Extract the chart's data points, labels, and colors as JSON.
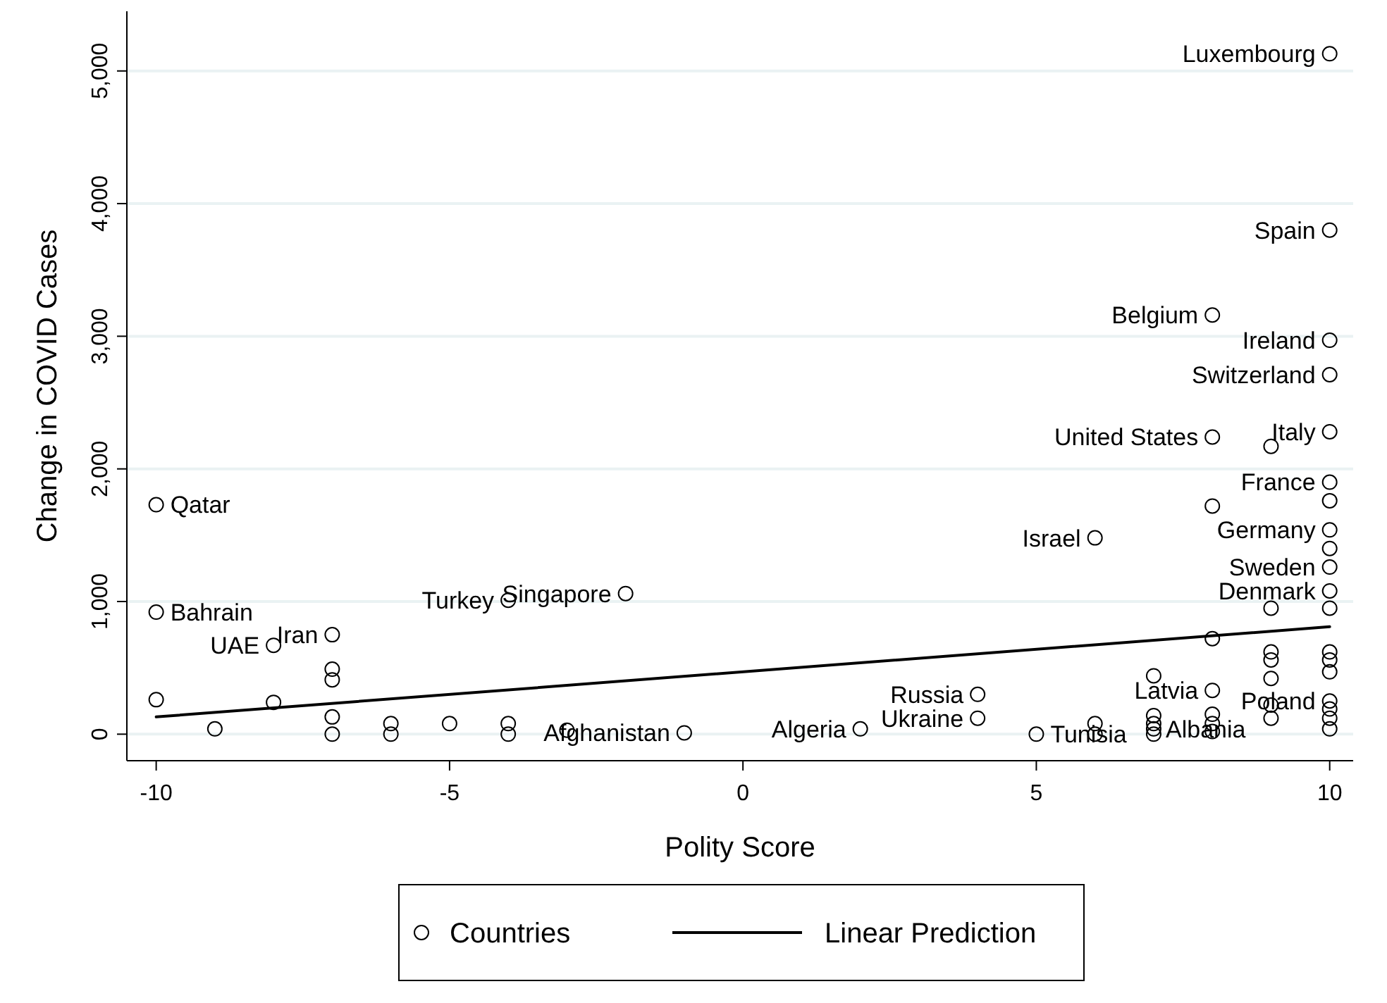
{
  "chart_data": {
    "type": "scatter",
    "xlabel": "Polity Score",
    "ylabel": "Change in COVID Cases",
    "xlim": [
      -10.5,
      10.4
    ],
    "xticks": [
      -10,
      -5,
      0,
      5,
      10
    ],
    "ylim": [
      -200,
      5450
    ],
    "yticks": [
      0,
      {
        "value": 1000,
        "label": "1,000"
      },
      {
        "value": 2000,
        "label": "2,000"
      },
      {
        "value": 3000,
        "label": "3,000"
      },
      {
        "value": 4000,
        "label": "4,000"
      },
      {
        "value": 5000,
        "label": "5,000"
      }
    ],
    "grid": "y",
    "legend": "bottom",
    "series": [
      {
        "name": "Countries",
        "marker": "circle",
        "color": "#000000",
        "x": [
          10,
          10,
          8,
          10,
          10,
          8,
          10,
          -10,
          -2,
          -4,
          -10,
          -8,
          -7,
          10,
          6,
          10,
          10,
          10,
          10,
          4,
          4,
          2,
          -1,
          5,
          8,
          9,
          8,
          10,
          10,
          8,
          9,
          9,
          9,
          10,
          10,
          10,
          7,
          10,
          10,
          10,
          10,
          9,
          9,
          9,
          8,
          8,
          8,
          7,
          7,
          7,
          7,
          6,
          6,
          -10,
          -9,
          -8,
          -7,
          -7,
          -7,
          -7,
          -6,
          -6,
          -5,
          -4,
          -4,
          -3
        ],
        "values": [
          5130,
          3800,
          3160,
          2970,
          2710,
          2240,
          2280,
          1730,
          1060,
          1010,
          920,
          670,
          750,
          1900,
          1480,
          1540,
          1760,
          1400,
          1260,
          300,
          120,
          40,
          10,
          0,
          1720,
          2170,
          330,
          1080,
          950,
          720,
          950,
          620,
          560,
          620,
          560,
          470,
          440,
          250,
          190,
          120,
          40,
          420,
          220,
          120,
          150,
          80,
          20,
          140,
          80,
          40,
          0,
          80,
          0,
          260,
          40,
          240,
          490,
          410,
          130,
          0,
          80,
          0,
          80,
          80,
          0,
          30
        ]
      },
      {
        "name": "Linear Prediction",
        "type": "line",
        "marker": "none",
        "color": "#000000",
        "line_style": "solid",
        "x": [
          -10,
          10
        ],
        "values": [
          130,
          810
        ]
      }
    ],
    "annotations": [
      {
        "text": "Luxembourg",
        "x": 10,
        "y": 5130
      },
      {
        "text": "Spain",
        "x": 10,
        "y": 3800
      },
      {
        "text": "Belgium",
        "x": 8,
        "y": 3160
      },
      {
        "text": "Ireland",
        "x": 10,
        "y": 2970
      },
      {
        "text": "Switzerland",
        "x": 10,
        "y": 2710
      },
      {
        "text": "United States",
        "x": 8,
        "y": 2240
      },
      {
        "text": "Italy",
        "x": 10,
        "y": 2280
      },
      {
        "text": "Qatar",
        "x": -10,
        "y": 1730
      },
      {
        "text": "France",
        "x": 10,
        "y": 1900
      },
      {
        "text": "Israel",
        "x": 6,
        "y": 1480
      },
      {
        "text": "Germany",
        "x": 10,
        "y": 1540
      },
      {
        "text": "Singapore",
        "x": -2,
        "y": 1060
      },
      {
        "text": "Sweden",
        "x": 10,
        "y": 1260
      },
      {
        "text": "Denmark",
        "x": 10,
        "y": 1080
      },
      {
        "text": "Bahrain",
        "x": -10,
        "y": 920
      },
      {
        "text": "Turkey",
        "x": -4,
        "y": 1010
      },
      {
        "text": "Iran",
        "x": -7,
        "y": 750
      },
      {
        "text": "UAE",
        "x": -8,
        "y": 670
      },
      {
        "text": "Latvia",
        "x": 8,
        "y": 330
      },
      {
        "text": "Russia",
        "x": 4,
        "y": 300
      },
      {
        "text": "Poland",
        "x": 10,
        "y": 250
      },
      {
        "text": "Albania",
        "x": 9,
        "y": 220
      },
      {
        "text": "Ukraine",
        "x": 4,
        "y": 120
      },
      {
        "text": "Algeria",
        "x": 2,
        "y": 40
      },
      {
        "text": "Afghanistan",
        "x": -1,
        "y": 10
      },
      {
        "text": "Tunisia",
        "x": 5,
        "y": 0
      }
    ]
  }
}
